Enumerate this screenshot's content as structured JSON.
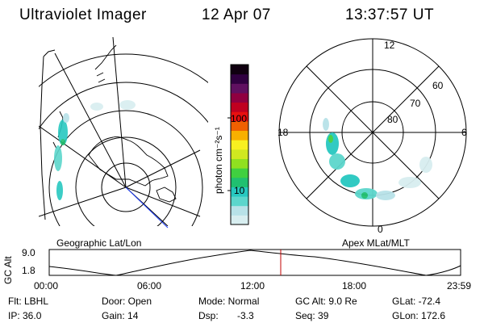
{
  "header": {
    "title": "Ultraviolet Imager",
    "date": "12 Apr 07",
    "time": "13:37:57 UT"
  },
  "colorbar": {
    "unit_label": "photon cm⁻²s⁻¹",
    "ticks": [
      "100",
      "10"
    ],
    "colors": [
      "#d8eef0",
      "#b8e2e8",
      "#5cd6cc",
      "#27c8c0",
      "#20c070",
      "#40d040",
      "#90e020",
      "#d0e820",
      "#f8f020",
      "#f8b000",
      "#f06000",
      "#e81010",
      "#c00020",
      "#900040",
      "#601060",
      "#300040",
      "#100010"
    ]
  },
  "geo_map": {
    "label": "Geographic Lat/Lon"
  },
  "polar_plot": {
    "label": "Apex MLat/MLT",
    "hour_labels": {
      "top": "12",
      "bottom": "0",
      "left": "18",
      "right": "6"
    },
    "lat_labels": [
      "60",
      "70",
      "80"
    ]
  },
  "alt_plot": {
    "ylabel": "GC Alt",
    "y_ticks": [
      "9.0",
      "1.8"
    ],
    "x_ticks": [
      "00:00",
      "06:00",
      "12:00",
      "18:00",
      "23:59"
    ],
    "current_time_marker_color": "#c00000"
  },
  "info": {
    "col1": [
      "Flt: LBHL",
      "IP: 36.0"
    ],
    "col2": [
      "Door: Open",
      "Gain: 14"
    ],
    "col3a": [
      "Mode: Normal",
      "Dsp:"
    ],
    "dsp_value": "-3.3",
    "col4": [
      "GC Alt: 9.0 Re",
      "Seq: 39"
    ],
    "col5": [
      "GLat: -72.4",
      "GLon: 172.6"
    ]
  }
}
